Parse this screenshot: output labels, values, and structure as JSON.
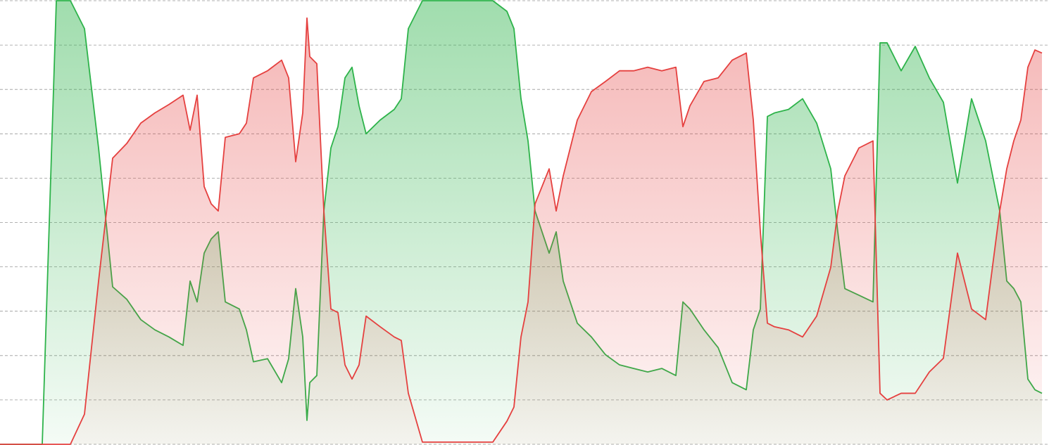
{
  "chart_data": {
    "type": "area",
    "x": [
      0,
      20,
      40,
      60,
      80,
      100,
      120,
      140,
      160,
      180,
      200,
      220,
      240,
      260,
      270,
      280,
      290,
      300,
      310,
      320,
      340,
      350,
      360,
      380,
      400,
      410,
      420,
      430,
      436,
      440,
      450,
      460,
      470,
      480,
      490,
      500,
      510,
      520,
      540,
      560,
      570,
      580,
      600,
      620,
      640,
      660,
      680,
      700,
      720,
      730,
      740,
      750,
      760,
      780,
      790,
      800,
      820,
      840,
      860,
      880,
      900,
      920,
      940,
      960,
      970,
      980,
      1000,
      1020,
      1040,
      1060,
      1070,
      1080,
      1090,
      1100,
      1120,
      1140,
      1160,
      1180,
      1190,
      1200,
      1220,
      1240,
      1250,
      1260,
      1280,
      1300,
      1320,
      1340,
      1360,
      1380,
      1400,
      1420,
      1430,
      1440,
      1450,
      1460,
      1470,
      1480
    ],
    "series": [
      {
        "color": "#2db34a",
        "values": [
          0,
          0,
          0,
          0,
          100,
          100,
          93.7,
          66.8,
          35.5,
          32.7,
          28.1,
          25.8,
          24.2,
          22.3,
          36.8,
          32.1,
          43.1,
          46.3,
          47.9,
          32.1,
          30.5,
          25.8,
          18.6,
          19.3,
          13.9,
          19.3,
          35.1,
          24.2,
          5.4,
          13.9,
          15.5,
          52.6,
          66.8,
          71.6,
          82.6,
          85,
          76.3,
          70,
          73.1,
          75.5,
          77.9,
          93.7,
          100,
          100,
          100,
          100,
          100,
          100,
          97.6,
          93.7,
          77.9,
          68.4,
          52.6,
          43.1,
          47.9,
          36.8,
          27.3,
          24.2,
          20.2,
          17.9,
          17.1,
          16.3,
          17.1,
          15.5,
          32.1,
          30.5,
          25.8,
          21.8,
          13.9,
          12.3,
          25.8,
          30.5,
          73.9,
          74.7,
          75.5,
          77.9,
          72.4,
          62.1,
          47.9,
          35.1,
          33.6,
          32.1,
          90.5,
          90.5,
          84.2,
          89.7,
          82.6,
          77.1,
          58.9,
          77.9,
          68.4,
          52.6,
          36.8,
          35.1,
          32.1,
          14.7,
          12.3,
          11.5
        ]
      },
      {
        "color": "#e5403f",
        "values": [
          0,
          0,
          0,
          0,
          0,
          0,
          6.8,
          36.8,
          64.5,
          67.8,
          72.4,
          74.7,
          76.6,
          78.7,
          70.8,
          78.7,
          58.1,
          54.2,
          52.6,
          69.2,
          70,
          72.4,
          82.6,
          84.2,
          86.6,
          82.6,
          63.7,
          74.7,
          96.1,
          87.4,
          85.8,
          52.6,
          30.5,
          29.7,
          17.9,
          14.7,
          17.9,
          28.9,
          26.5,
          24.2,
          23.4,
          11.5,
          0.5,
          0.5,
          0.5,
          0.5,
          0.5,
          0.5,
          5.2,
          8.4,
          24.2,
          32.1,
          54.2,
          62.1,
          52.6,
          60.5,
          73.1,
          79.5,
          81.8,
          84.2,
          84.2,
          85,
          84.2,
          85,
          71.6,
          76.3,
          81.8,
          82.6,
          86.6,
          88.2,
          73.1,
          47.9,
          27.3,
          26.5,
          25.8,
          24.2,
          28.9,
          39.9,
          52.6,
          60.5,
          66.8,
          68.4,
          11.5,
          10,
          11.5,
          11.5,
          16.3,
          19.4,
          43.1,
          30.5,
          28.1,
          52.6,
          62.1,
          68.4,
          73.1,
          85,
          88.9,
          88.2
        ]
      }
    ],
    "xlim": [
      0,
      1485
    ],
    "ylim": [
      0,
      100
    ],
    "yticks": [
      0,
      10,
      20,
      30,
      40,
      50,
      60,
      70,
      80,
      90,
      100
    ],
    "grid": true
  }
}
